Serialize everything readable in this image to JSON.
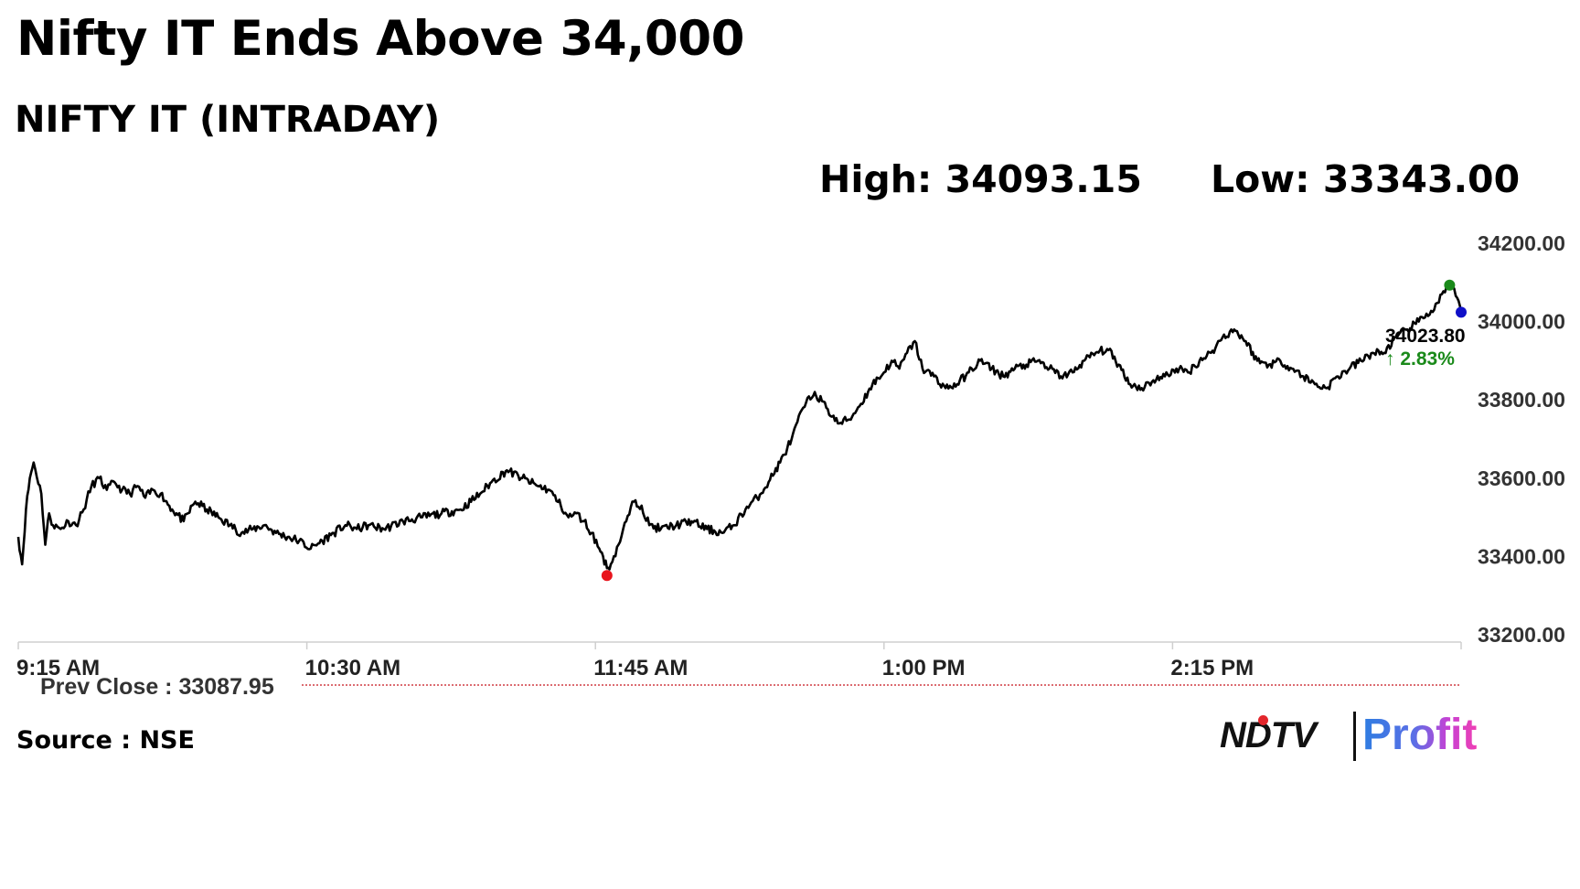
{
  "headline": "Nifty IT Ends Above 34,000",
  "subtitle": "NIFTY IT (INTRADAY)",
  "stats": {
    "high_label": "High: 34093.15",
    "low_label": "Low: 33343.00"
  },
  "source": "Source : NSE",
  "logo": {
    "left": "NDTV",
    "right": "Profit"
  },
  "colors": {
    "line": "#000000",
    "high_marker": "#1a8a1a",
    "low_marker": "#e8141c",
    "last_marker": "#1010c8",
    "change_text": "#1a8a1a",
    "prev_close_line": "#c8161e"
  },
  "chart_data": {
    "type": "line",
    "x_start": "9:15 AM",
    "x_end": "3:30 PM",
    "x_tick_labels": [
      "9:15 AM",
      "10:30 AM",
      "11:45 AM",
      "1:00 PM",
      "2:15 PM"
    ],
    "y_tick_labels": [
      "34200.00",
      "34000.00",
      "33800.00",
      "33600.00",
      "33400.00",
      "33200.00"
    ],
    "ylim": [
      33200,
      34200
    ],
    "prev_close": 33087.95,
    "prev_close_label": "Prev Close : 33087.95",
    "last_value_label": "34023.80",
    "change_label": "↑ 2.83%",
    "high_marker_value": 34093.15,
    "low_marker_value": 33343.0,
    "series": [
      {
        "points": [
          [
            "9:15",
            33450
          ],
          [
            "9:16",
            33380
          ],
          [
            "9:17",
            33520
          ],
          [
            "9:18",
            33600
          ],
          [
            "9:19",
            33640
          ],
          [
            "9:21",
            33560
          ],
          [
            "9:22",
            33430
          ],
          [
            "9:23",
            33510
          ],
          [
            "9:24",
            33480
          ],
          [
            "9:26",
            33470
          ],
          [
            "9:28",
            33490
          ],
          [
            "9:30",
            33480
          ],
          [
            "9:32",
            33520
          ],
          [
            "9:34",
            33580
          ],
          [
            "9:36",
            33600
          ],
          [
            "9:38",
            33570
          ],
          [
            "9:40",
            33590
          ],
          [
            "9:42",
            33570
          ],
          [
            "9:44",
            33560
          ],
          [
            "9:46",
            33580
          ],
          [
            "9:48",
            33550
          ],
          [
            "9:50",
            33570
          ],
          [
            "9:52",
            33560
          ],
          [
            "9:55",
            33520
          ],
          [
            "9:58",
            33490
          ],
          [
            "10:01",
            33540
          ],
          [
            "10:04",
            33520
          ],
          [
            "10:07",
            33500
          ],
          [
            "10:10",
            33480
          ],
          [
            "10:13",
            33460
          ],
          [
            "10:16",
            33470
          ],
          [
            "10:19",
            33480
          ],
          [
            "10:22",
            33460
          ],
          [
            "10:25",
            33450
          ],
          [
            "10:28",
            33440
          ],
          [
            "10:31",
            33420
          ],
          [
            "10:34",
            33440
          ],
          [
            "10:37",
            33460
          ],
          [
            "10:40",
            33480
          ],
          [
            "10:43",
            33470
          ],
          [
            "10:46",
            33480
          ],
          [
            "10:50",
            33470
          ],
          [
            "10:55",
            33490
          ],
          [
            "11:00",
            33500
          ],
          [
            "11:05",
            33510
          ],
          [
            "11:10",
            33520
          ],
          [
            "11:15",
            33560
          ],
          [
            "11:18",
            33590
          ],
          [
            "11:22",
            33620
          ],
          [
            "11:26",
            33600
          ],
          [
            "11:30",
            33580
          ],
          [
            "11:33",
            33570
          ],
          [
            "11:36",
            33530
          ],
          [
            "11:38",
            33500
          ],
          [
            "11:40",
            33510
          ],
          [
            "11:42",
            33490
          ],
          [
            "11:44",
            33460
          ],
          [
            "11:46",
            33420
          ],
          [
            "11:47",
            33400
          ],
          [
            "11:48",
            33370
          ],
          [
            "11:49",
            33380
          ],
          [
            "11:51",
            33430
          ],
          [
            "11:53",
            33490
          ],
          [
            "11:55",
            33540
          ],
          [
            "11:57",
            33530
          ],
          [
            "11:59",
            33480
          ],
          [
            "12:02",
            33470
          ],
          [
            "12:06",
            33480
          ],
          [
            "12:10",
            33490
          ],
          [
            "12:14",
            33470
          ],
          [
            "12:18",
            33460
          ],
          [
            "12:21",
            33480
          ],
          [
            "12:24",
            33520
          ],
          [
            "12:27",
            33550
          ],
          [
            "12:30",
            33590
          ],
          [
            "12:33",
            33640
          ],
          [
            "12:36",
            33700
          ],
          [
            "12:39",
            33780
          ],
          [
            "12:42",
            33820
          ],
          [
            "12:45",
            33780
          ],
          [
            "12:48",
            33740
          ],
          [
            "12:51",
            33750
          ],
          [
            "12:54",
            33790
          ],
          [
            "12:57",
            33840
          ],
          [
            "13:00",
            33870
          ],
          [
            "13:02",
            33900
          ],
          [
            "13:04",
            33880
          ],
          [
            "13:06",
            33920
          ],
          [
            "13:08",
            33950
          ],
          [
            "13:10",
            33880
          ],
          [
            "13:13",
            33860
          ],
          [
            "13:16",
            33830
          ],
          [
            "13:19",
            33840
          ],
          [
            "13:22",
            33870
          ],
          [
            "13:25",
            33900
          ],
          [
            "13:28",
            33880
          ],
          [
            "13:31",
            33860
          ],
          [
            "13:34",
            33880
          ],
          [
            "13:37",
            33890
          ],
          [
            "13:40",
            33900
          ],
          [
            "13:43",
            33880
          ],
          [
            "13:46",
            33860
          ],
          [
            "13:49",
            33870
          ],
          [
            "13:52",
            33900
          ],
          [
            "13:55",
            33920
          ],
          [
            "13:58",
            33930
          ],
          [
            "14:01",
            33890
          ],
          [
            "14:04",
            33840
          ],
          [
            "14:07",
            33830
          ],
          [
            "14:10",
            33850
          ],
          [
            "14:13",
            33860
          ],
          [
            "14:16",
            33880
          ],
          [
            "14:19",
            33870
          ],
          [
            "14:22",
            33900
          ],
          [
            "14:25",
            33920
          ],
          [
            "14:28",
            33960
          ],
          [
            "14:31",
            33980
          ],
          [
            "14:34",
            33950
          ],
          [
            "14:37",
            33900
          ],
          [
            "14:40",
            33890
          ],
          [
            "14:43",
            33900
          ],
          [
            "14:46",
            33880
          ],
          [
            "14:49",
            33860
          ],
          [
            "14:52",
            33840
          ],
          [
            "14:55",
            33830
          ],
          [
            "14:58",
            33860
          ],
          [
            "15:01",
            33880
          ],
          [
            "15:04",
            33900
          ],
          [
            "15:07",
            33920
          ],
          [
            "15:10",
            33920
          ],
          [
            "15:13",
            33960
          ],
          [
            "15:16",
            33980
          ],
          [
            "15:19",
            34000
          ],
          [
            "15:21",
            34020
          ],
          [
            "15:23",
            34030
          ],
          [
            "15:25",
            34070
          ],
          [
            "15:27",
            34093.15
          ],
          [
            "15:29",
            34060
          ],
          [
            "15:30",
            34023.8
          ]
        ]
      }
    ]
  }
}
